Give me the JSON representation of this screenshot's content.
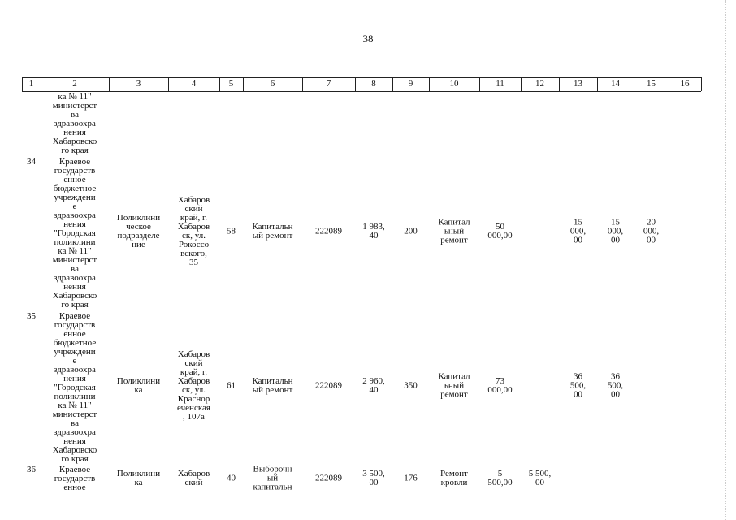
{
  "page_number": "38",
  "table": {
    "header": [
      "1",
      "2",
      "3",
      "4",
      "5",
      "6",
      "7",
      "8",
      "9",
      "10",
      "11",
      "12",
      "13",
      "14",
      "15",
      "16"
    ],
    "rows": [
      {
        "cells": [
          null,
          "ка № 11\"\nминистерст\nва\nздравоохра\nнения\nХабаровско\nго края",
          null,
          null,
          null,
          null,
          null,
          null,
          null,
          null,
          null,
          null,
          null,
          null,
          null,
          null
        ]
      },
      {
        "cells": [
          "34",
          "Краевое\nгосударств\nенное\nбюджетное\nучреждени\nе\nздравоохра\nнения\n\"Городская\nполиклини\nка № 11\"\nминистерст\nва\nздравоохра\nнения\nХабаровско\nго края",
          "Поликлини\nческое\nподразделе\nние",
          "Хабаров\nский\nкрай, г.\nХабаров\nск, ул.\nРокоссо\nвского,\n35",
          "58",
          "Капитальн\nый ремонт",
          "222089",
          "1 983,\n40",
          "200",
          "Капитал\nьный\nремонт",
          "50\n000,00",
          null,
          "15\n000,\n00",
          "15\n000,\n00",
          "20\n000,\n00",
          null
        ]
      },
      {
        "cells": [
          "35",
          "Краевое\nгосударств\nенное\nбюджетное\nучреждени\nе\nздравоохра\nнения\n\"Городская\nполиклини\nка № 11\"\nминистерст\nва\nздравоохра\nнения\nХабаровско\nго края",
          "Поликлини\nка",
          "Хабаров\nский\nкрай, г.\nХабаров\nск, ул.\nКраснор\nеченская\n, 107а",
          "61",
          "Капитальн\nый ремонт",
          "222089",
          "2 960,\n40",
          "350",
          "Капитал\nьный\nремонт",
          "73\n000,00",
          null,
          "36\n500,\n00",
          "36\n500,\n00",
          null,
          null
        ]
      },
      {
        "cells": [
          "36",
          "Краевое\nгосударств\nенное",
          "Поликлини\nка",
          "Хабаров\nский",
          "40",
          "Выборочн\nый\nкапитальн",
          "222089",
          "3 500,\n00",
          "176",
          "Ремонт\nкровли",
          "5\n500,00",
          "5 500,\n00",
          null,
          null,
          null,
          null
        ]
      }
    ]
  }
}
